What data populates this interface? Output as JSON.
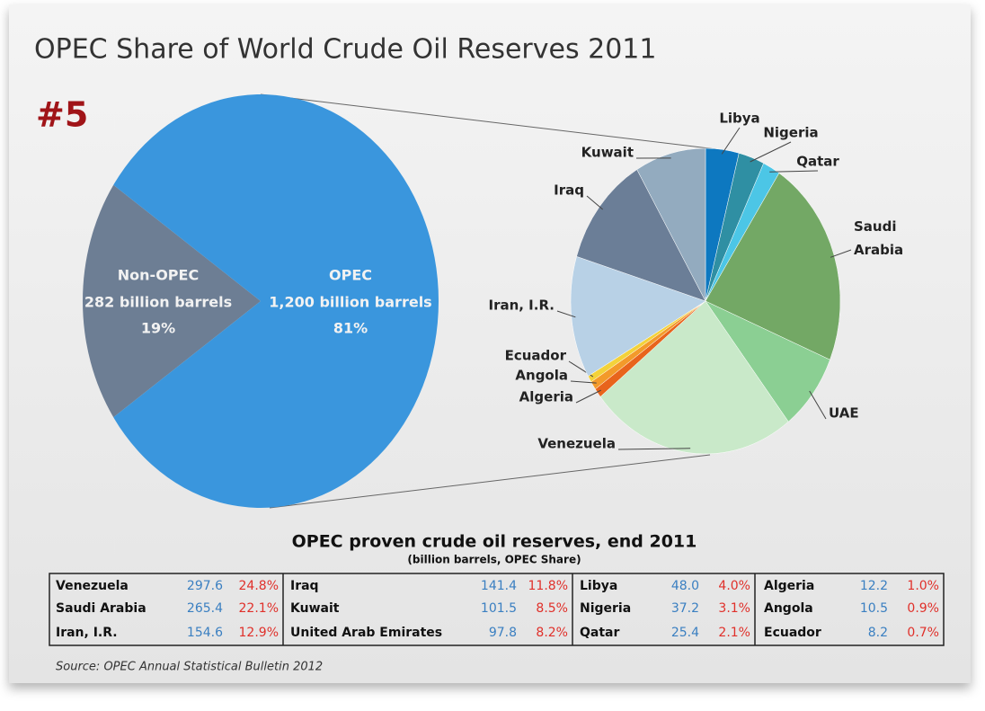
{
  "chart_data": [
    {
      "type": "pie",
      "title": "OPEC Share of World Crude Oil Reserves 2011",
      "annotation": "#5",
      "categories": [
        "Non-OPEC",
        "OPEC"
      ],
      "amount_labels": [
        "282 billion barrels",
        "1,200 billion barrels"
      ],
      "values": [
        19,
        81
      ],
      "value_labels": [
        "19%",
        "81%"
      ],
      "colors": [
        "#6d7e94",
        "#3a96dd"
      ]
    },
    {
      "type": "pie",
      "title": "OPEC proven crude oil reserves, end 2011",
      "subtitle": "(billion barrels, OPEC Share)",
      "labels": [
        "Libya",
        "Nigeria",
        "Qatar",
        "Saudi Arabia",
        "UAE",
        "Venezuela",
        "Algeria",
        "Angola",
        "Ecuador",
        "Iran, I.R.",
        "Iraq",
        "Kuwait"
      ],
      "categories": [
        "Libya",
        "Nigeria",
        "Qatar",
        "Saudi Arabia",
        "United Arab Emirates",
        "Venezuela",
        "Algeria",
        "Angola",
        "Ecuador",
        "Iran, I.R.",
        "Iraq",
        "Kuwait"
      ],
      "reserves": [
        48.0,
        37.2,
        25.4,
        265.4,
        97.8,
        297.6,
        12.2,
        10.5,
        8.2,
        154.6,
        141.4,
        101.5
      ],
      "values": [
        4.0,
        3.1,
        2.1,
        22.1,
        8.2,
        24.8,
        1.0,
        0.9,
        0.7,
        12.9,
        11.8,
        8.5
      ],
      "value_labels": [
        "4.0%",
        "3.1%",
        "2.1%",
        "22.1%",
        "8.2%",
        "24.8%",
        "1.0%",
        "0.9%",
        "0.7%",
        "12.9%",
        "11.8%",
        "8.5%"
      ],
      "colors": [
        "#0d78c0",
        "#2f8fa3",
        "#4cc6e6",
        "#73a865",
        "#8bcf93",
        "#c9e9c9",
        "#e8641c",
        "#f39a2a",
        "#f3d23a",
        "#b8d1e6",
        "#6b7e97",
        "#93abbf"
      ]
    }
  ],
  "source": "Source: OPEC Annual Statistical Bulletin 2012"
}
